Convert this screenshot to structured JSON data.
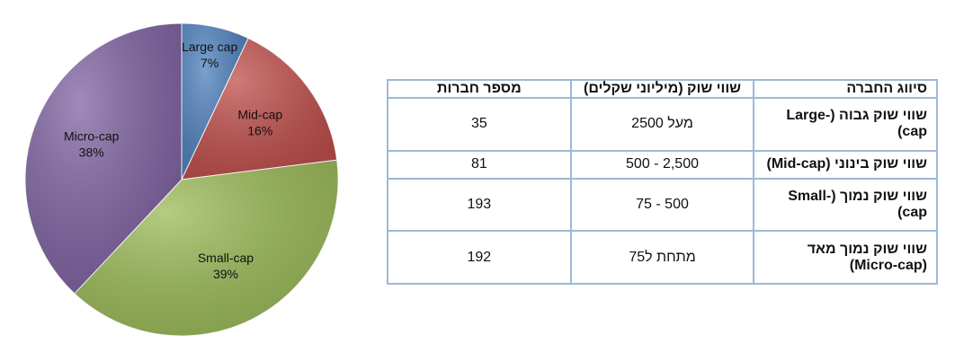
{
  "chart_data": {
    "type": "pie",
    "slices": [
      {
        "label": "Large cap",
        "value": 7,
        "value_label": "7%",
        "color": "#4f81bd"
      },
      {
        "label": "Mid-cap",
        "value": 16,
        "value_label": "16%",
        "color": "#c0504d"
      },
      {
        "label": "Small-cap",
        "value": 39,
        "value_label": "39%",
        "color": "#9bbb59"
      },
      {
        "label": "Micro-cap",
        "value": 38,
        "value_label": "38%",
        "color": "#8064a2"
      }
    ]
  },
  "table": {
    "headers": [
      "סיווג החברה",
      "שווי שוק (מיליוני שקלים)",
      "מספר חברות"
    ],
    "rows": [
      [
        "שווי שוק גבוה (Large-cap)",
        "מעל 2500",
        "35"
      ],
      [
        "שווי שוק בינוני (Mid-cap)",
        "2,500 - 500",
        "81"
      ],
      [
        "שווי שוק נמוך (Small-cap)",
        "500 - 75",
        "193"
      ],
      [
        "שווי שוק נמוך מאד (Micro-cap)",
        "מתחת ל75",
        "192"
      ]
    ]
  }
}
